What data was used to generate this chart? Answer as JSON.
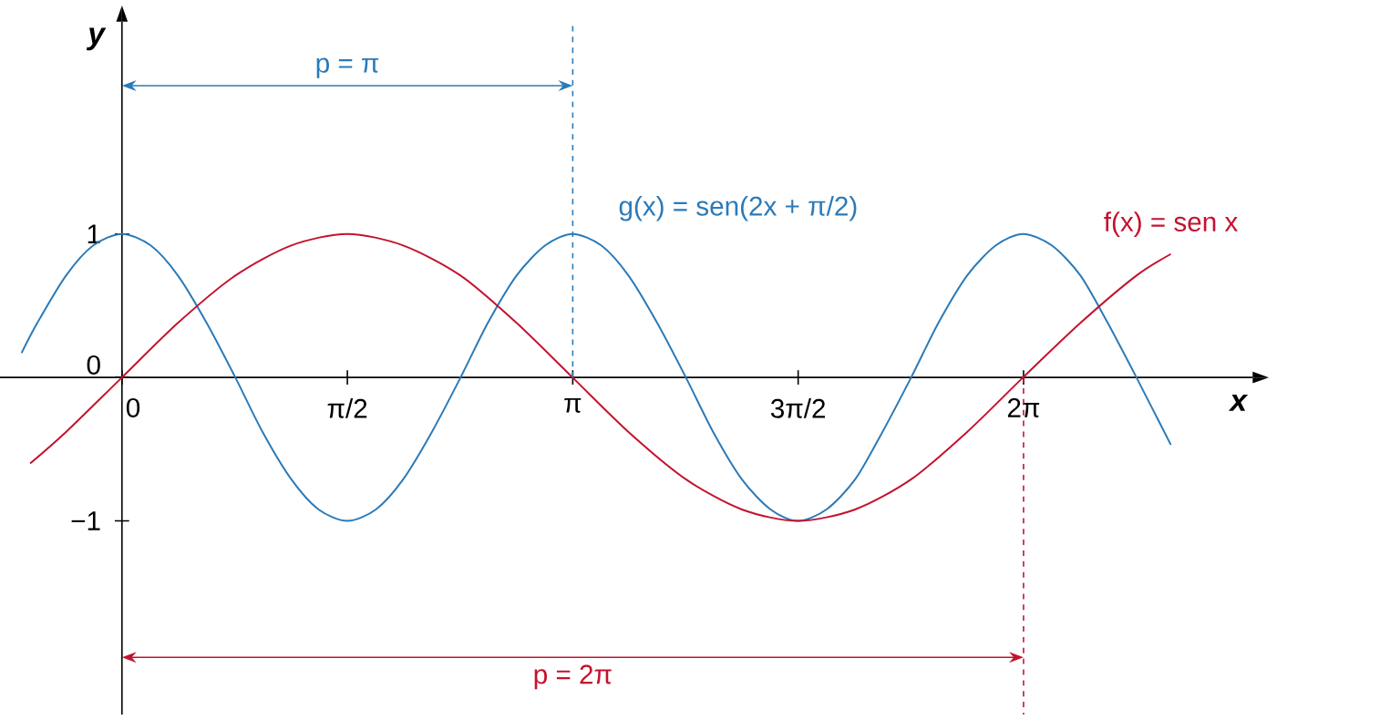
{
  "chart_data": {
    "type": "line",
    "xlabel": "x",
    "ylabel": "y",
    "xlim": [
      -0.85,
      7.88
    ],
    "ylim": [
      -2.35,
      2.48
    ],
    "xticks": [
      {
        "value": 0,
        "label": "0"
      },
      {
        "value": 1.5708,
        "label": "π/2"
      },
      {
        "value": 3.1416,
        "label": "π"
      },
      {
        "value": 4.7124,
        "label": "3π/2"
      },
      {
        "value": 6.2832,
        "label": "2π"
      }
    ],
    "yticks": [
      {
        "value": 0,
        "label": "0"
      },
      1,
      {
        "value": -1,
        "label": "−1"
      }
    ],
    "series": [
      {
        "name": "g(x) = sen(2x + π/2)",
        "color": "#2a7ab8",
        "x": [
          -0.7,
          -0.59,
          -0.39,
          -0.2,
          0,
          0.2,
          0.39,
          0.59,
          0.79,
          0.98,
          1.18,
          1.37,
          1.57,
          1.77,
          1.96,
          2.16,
          2.36,
          2.55,
          2.75,
          2.95,
          3.14,
          3.34,
          3.53,
          3.73,
          3.93,
          4.12,
          4.32,
          4.52,
          4.71,
          4.91,
          5.11,
          5.3,
          5.5,
          5.69,
          5.89,
          6.09,
          6.28,
          6.48,
          6.68,
          6.87,
          7.07,
          7.31
        ],
        "values": [
          0.17,
          0.38,
          0.71,
          0.92,
          1,
          0.92,
          0.71,
          0.38,
          0,
          -0.38,
          -0.71,
          -0.92,
          -1,
          -0.92,
          -0.71,
          -0.38,
          0,
          0.38,
          0.71,
          0.92,
          1,
          0.92,
          0.71,
          0.38,
          0,
          -0.38,
          -0.71,
          -0.92,
          -1,
          -0.92,
          -0.71,
          -0.38,
          0,
          0.38,
          0.71,
          0.92,
          1,
          0.92,
          0.71,
          0.38,
          0,
          -0.47
        ]
      },
      {
        "name": "f(x) = sen x",
        "color": "#c4122f",
        "x": [
          -0.64,
          -0.39,
          0,
          0.39,
          0.79,
          1.18,
          1.57,
          1.96,
          2.36,
          2.75,
          3.14,
          3.53,
          3.93,
          4.32,
          4.71,
          5.11,
          5.5,
          5.89,
          6.28,
          6.68,
          7.07,
          7.31
        ],
        "values": [
          -0.6,
          -0.38,
          0,
          0.38,
          0.71,
          0.92,
          1,
          0.92,
          0.71,
          0.38,
          0,
          -0.38,
          -0.71,
          -0.92,
          -1,
          -0.92,
          -0.71,
          -0.38,
          0,
          0.38,
          0.71,
          0.86
        ]
      }
    ],
    "ref_lines": [
      {
        "axis": "x",
        "value": 3.1416,
        "color": "#2a7ab8",
        "line_style": "dashed"
      },
      {
        "axis": "x",
        "value": 6.2832,
        "color": "#c4122f",
        "line_style": "dashed"
      }
    ],
    "annotations": [
      "p = π",
      "p = 2π"
    ]
  }
}
